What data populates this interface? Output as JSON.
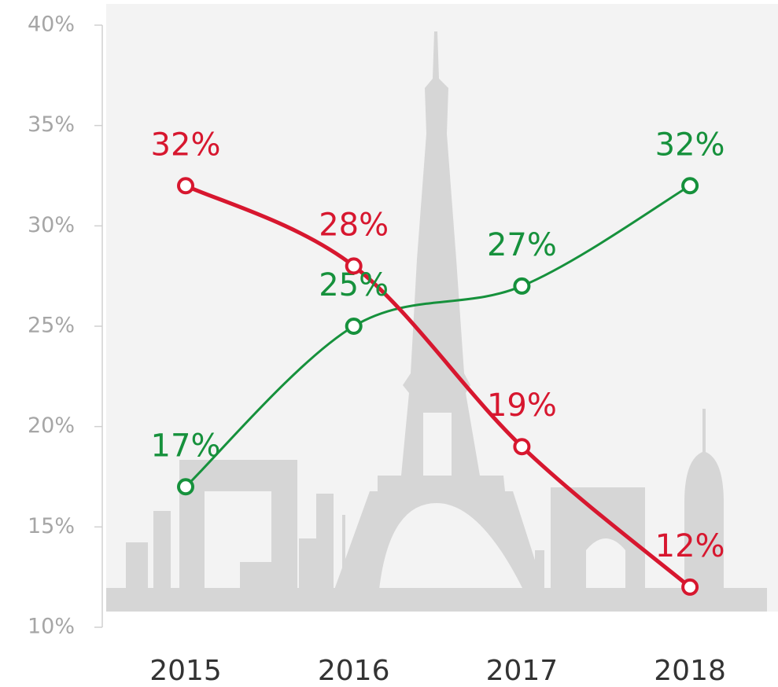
{
  "chart_data": {
    "type": "line",
    "categories": [
      "2015",
      "2016",
      "2017",
      "2018"
    ],
    "series": [
      {
        "color": "#d7172f",
        "values": [
          32,
          28,
          19,
          12
        ],
        "value_labels": [
          "32%",
          "28%",
          "19%",
          "12%"
        ]
      },
      {
        "color": "#16913c",
        "values": [
          17,
          25,
          27,
          32
        ],
        "value_labels": [
          "17%",
          "25%",
          "27%",
          "32%"
        ]
      }
    ],
    "ylim": [
      10,
      40
    ],
    "yticks": [
      {
        "value": 10,
        "label": "10%"
      },
      {
        "value": 15,
        "label": "15%"
      },
      {
        "value": 20,
        "label": "20%"
      },
      {
        "value": 25,
        "label": "25%"
      },
      {
        "value": 30,
        "label": "30%"
      },
      {
        "value": 35,
        "label": "35%"
      },
      {
        "value": 40,
        "label": "40%"
      }
    ],
    "grid": false
  }
}
